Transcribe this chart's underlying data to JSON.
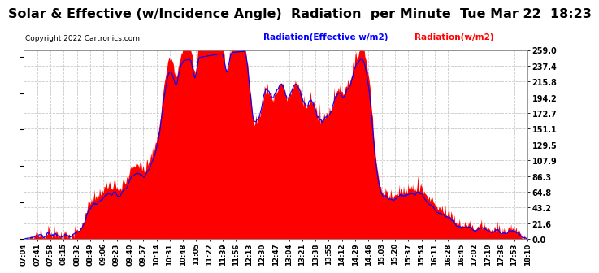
{
  "title": "Solar & Effective (w/Incidence Angle)  Radiation  per Minute  Tue Mar 22  18:23",
  "copyright": "Copyright 2022 Cartronics.com",
  "legend_effective": "Radiation(Effective w/m2)",
  "legend_solar": "Radiation(w/m2)",
  "ylabel_right_ticks": [
    0.0,
    21.6,
    43.2,
    64.8,
    86.3,
    107.9,
    129.5,
    151.1,
    172.7,
    194.2,
    215.8,
    237.4,
    259.0
  ],
  "ymax": 259.0,
  "ymin": 0.0,
  "bg_color": "#ffffff",
  "grid_color": "#c8c8c8",
  "red_color": "#ff0000",
  "blue_color": "#0000ff",
  "title_fontsize": 11.5,
  "tick_labels": [
    "07:04",
    "07:41",
    "07:58",
    "08:15",
    "08:32",
    "08:49",
    "09:06",
    "09:23",
    "09:40",
    "09:57",
    "10:14",
    "10:31",
    "10:48",
    "11:05",
    "11:22",
    "11:39",
    "11:56",
    "12:13",
    "12:30",
    "12:47",
    "13:04",
    "13:21",
    "13:38",
    "13:55",
    "14:12",
    "14:29",
    "14:46",
    "15:03",
    "15:20",
    "15:37",
    "15:54",
    "16:11",
    "16:28",
    "16:45",
    "17:02",
    "17:19",
    "17:36",
    "17:53",
    "18:10"
  ]
}
